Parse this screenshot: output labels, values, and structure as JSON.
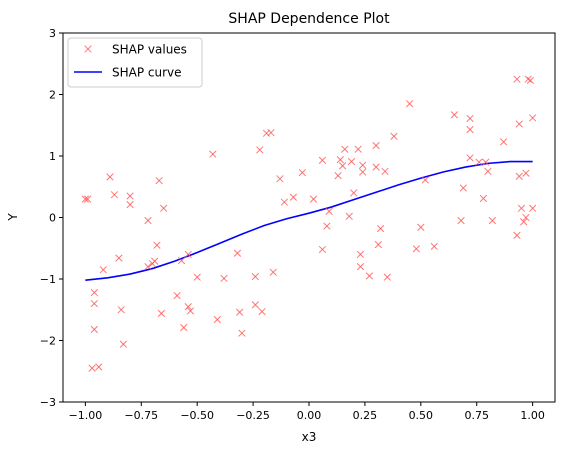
{
  "chart_data": {
    "type": "scatter",
    "title": "SHAP Dependence Plot",
    "xlabel": "x3",
    "ylabel": "Y",
    "xlim": [
      -1.1,
      1.1
    ],
    "ylim": [
      -3,
      3
    ],
    "xticks": [
      -1.0,
      -0.75,
      -0.5,
      -0.25,
      0.0,
      0.25,
      0.5,
      0.75,
      1.0
    ],
    "xtick_labels": [
      "−1.00",
      "−0.75",
      "−0.50",
      "−0.25",
      "0.00",
      "0.25",
      "0.50",
      "0.75",
      "1.00"
    ],
    "yticks": [
      -3,
      -2,
      -1,
      0,
      1,
      2,
      3
    ],
    "ytick_labels": [
      "−3",
      "−2",
      "−1",
      "0",
      "1",
      "2",
      "3"
    ],
    "grid": false,
    "legend_position": "top-left",
    "series": [
      {
        "name": "SHAP values",
        "kind": "scatter",
        "marker": "x",
        "color": "#ff5555",
        "points": [
          [
            -1.0,
            0.3
          ],
          [
            -0.99,
            0.3
          ],
          [
            -0.97,
            -2.45
          ],
          [
            -0.96,
            -1.22
          ],
          [
            -0.96,
            -1.4
          ],
          [
            -0.96,
            -1.82
          ],
          [
            -0.94,
            -2.43
          ],
          [
            -0.92,
            -0.85
          ],
          [
            -0.89,
            0.66
          ],
          [
            -0.87,
            0.37
          ],
          [
            -0.85,
            -0.66
          ],
          [
            -0.84,
            -1.5
          ],
          [
            -0.83,
            -2.06
          ],
          [
            -0.8,
            0.21
          ],
          [
            -0.8,
            0.35
          ],
          [
            -0.72,
            -0.05
          ],
          [
            -0.72,
            -0.8
          ],
          [
            -0.7,
            -0.75
          ],
          [
            -0.69,
            -0.71
          ],
          [
            -0.68,
            -0.45
          ],
          [
            -0.67,
            0.6
          ],
          [
            -0.66,
            -1.56
          ],
          [
            -0.65,
            0.15
          ],
          [
            -0.59,
            -1.27
          ],
          [
            -0.57,
            -0.7
          ],
          [
            -0.56,
            -1.79
          ],
          [
            -0.54,
            -1.45
          ],
          [
            -0.54,
            -0.6
          ],
          [
            -0.53,
            -1.52
          ],
          [
            -0.5,
            -0.97
          ],
          [
            -0.43,
            1.03
          ],
          [
            -0.41,
            -1.66
          ],
          [
            -0.38,
            -0.99
          ],
          [
            -0.32,
            -0.58
          ],
          [
            -0.31,
            -1.54
          ],
          [
            -0.3,
            -1.88
          ],
          [
            -0.24,
            -0.96
          ],
          [
            -0.24,
            -1.42
          ],
          [
            -0.22,
            1.1
          ],
          [
            -0.21,
            -1.53
          ],
          [
            -0.19,
            1.37
          ],
          [
            -0.17,
            1.38
          ],
          [
            -0.16,
            -0.89
          ],
          [
            -0.13,
            0.63
          ],
          [
            -0.11,
            0.25
          ],
          [
            -0.07,
            0.33
          ],
          [
            -0.03,
            0.73
          ],
          [
            0.02,
            0.3
          ],
          [
            0.06,
            -0.52
          ],
          [
            0.06,
            0.93
          ],
          [
            0.08,
            -0.14
          ],
          [
            0.09,
            0.1
          ],
          [
            0.13,
            0.68
          ],
          [
            0.14,
            0.94
          ],
          [
            0.15,
            0.84
          ],
          [
            0.16,
            1.11
          ],
          [
            0.18,
            0.02
          ],
          [
            0.19,
            0.91
          ],
          [
            0.2,
            0.4
          ],
          [
            0.22,
            1.11
          ],
          [
            0.23,
            -0.6
          ],
          [
            0.23,
            -0.8
          ],
          [
            0.24,
            0.85
          ],
          [
            0.24,
            0.74
          ],
          [
            0.27,
            -0.95
          ],
          [
            0.3,
            1.17
          ],
          [
            0.3,
            0.82
          ],
          [
            0.31,
            -0.44
          ],
          [
            0.32,
            -0.18
          ],
          [
            0.34,
            0.75
          ],
          [
            0.35,
            -0.97
          ],
          [
            0.38,
            1.32
          ],
          [
            0.45,
            1.85
          ],
          [
            0.48,
            -0.51
          ],
          [
            0.5,
            -0.16
          ],
          [
            0.52,
            0.61
          ],
          [
            0.56,
            -0.47
          ],
          [
            0.65,
            1.67
          ],
          [
            0.68,
            -0.05
          ],
          [
            0.69,
            0.48
          ],
          [
            0.72,
            1.43
          ],
          [
            0.72,
            1.61
          ],
          [
            0.72,
            0.97
          ],
          [
            0.76,
            0.9
          ],
          [
            0.78,
            0.31
          ],
          [
            0.79,
            0.9
          ],
          [
            0.8,
            0.75
          ],
          [
            0.82,
            -0.05
          ],
          [
            0.87,
            1.23
          ],
          [
            0.93,
            2.25
          ],
          [
            0.93,
            -0.29
          ],
          [
            0.94,
            1.52
          ],
          [
            0.94,
            0.67
          ],
          [
            0.95,
            0.15
          ],
          [
            0.96,
            -0.07
          ],
          [
            0.97,
            0.0
          ],
          [
            0.97,
            0.72
          ],
          [
            0.98,
            2.25
          ],
          [
            0.99,
            2.23
          ],
          [
            1.0,
            0.15
          ],
          [
            1.0,
            1.62
          ]
        ]
      },
      {
        "name": "SHAP curve",
        "kind": "line",
        "color": "#0000ff",
        "points": [
          [
            -1.0,
            -1.02
          ],
          [
            -0.9,
            -0.98
          ],
          [
            -0.8,
            -0.92
          ],
          [
            -0.7,
            -0.83
          ],
          [
            -0.6,
            -0.71
          ],
          [
            -0.5,
            -0.57
          ],
          [
            -0.4,
            -0.42
          ],
          [
            -0.3,
            -0.27
          ],
          [
            -0.2,
            -0.13
          ],
          [
            -0.1,
            -0.02
          ],
          [
            0.0,
            0.07
          ],
          [
            0.1,
            0.17
          ],
          [
            0.2,
            0.29
          ],
          [
            0.3,
            0.41
          ],
          [
            0.4,
            0.53
          ],
          [
            0.5,
            0.64
          ],
          [
            0.6,
            0.74
          ],
          [
            0.7,
            0.82
          ],
          [
            0.8,
            0.88
          ],
          [
            0.9,
            0.91
          ],
          [
            1.0,
            0.91
          ]
        ]
      }
    ]
  }
}
